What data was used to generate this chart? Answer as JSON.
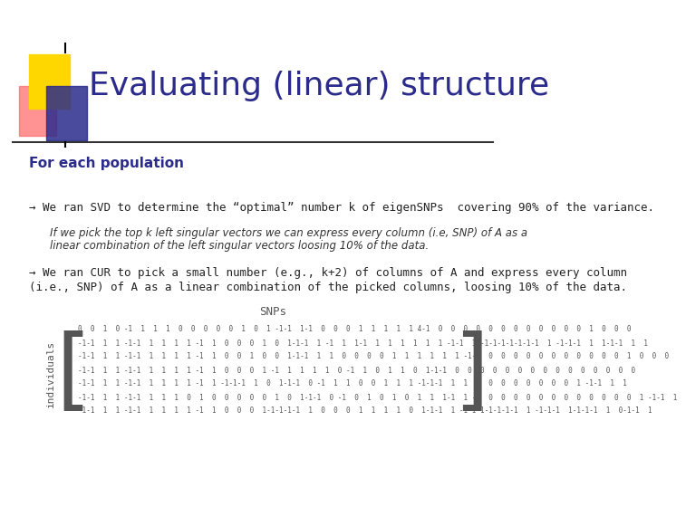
{
  "title": "Evaluating (linear) structure",
  "title_color": "#2b2b8c",
  "background_color": "#ffffff",
  "header_line_color": "#333333",
  "subtitle": "For each population",
  "subtitle_color": "#2b2b8c",
  "bullet1": "→ We ran SVD to determine the “optimal” number k of eigenSNPs  covering 90% of the variance.",
  "bullet1_color": "#222222",
  "indent1_line1": "If we pick the top k left singular vectors we can express every column (i.e, SNP) of A as a",
  "indent1_line2": "linear combination of the left singular vectors loosing 10% of the data.",
  "indent1_color": "#333333",
  "bullet2_line1": "→ We ran CUR to pick a small number (e.g., k+2) of columns of A and express every column",
  "bullet2_line2": "(i.e., SNP) of A as a linear combination of the picked columns, loosing 10% of the data.",
  "bullet2_color": "#222222",
  "matrix_label_x": "SNPs",
  "matrix_label_y": "individuals",
  "matrix_rows": [
    "0  0  1  0 -1  1  1  1  0  0  0  0  0  1  0  1 -1-1  1-1  0  0  0  1  1  1  1  1 4-1  0  0  0  0  0  0  0  0  0  0  0  0  1  0  0  0",
    "-1-1  1  1 -1-1  1  1  1  1 -1  1  0  0  0  1  0  1-1-1  1 -1  1  1-1  1  1  1  1  1  1 -1-1  1 -1-1-1-1-1-1-1  1 -1-1-1  1  1-1-1  1  1",
    "-1-1  1  1 -1-1  1  1  1  1 -1  1  0  0  1  0  0  1-1-1  1  1  0  0  0  0  1  1  1  1  1  1 -1-1  0  0  0  0  0  0  0  0  0  0  0  1  0  0  0",
    "-1-1  1  1 -1-1  1  1  1  1 -1  1  0  0  0  1 -1  1  1  1  1  0 -1  1  0  1  1  0  1-1-1  0  0  0  0  0  0  0  0  0  0  0  0  0  0  0",
    "-1-1  1  1 -1-1  1  1  1  1 -1  1 -1-1-1  1  0  1-1-1  0 -1  1  1  0  0  1  1  1 -1-1-1  1  1  0  0  0  0  0  0  0  0  1 -1-1  1  1",
    "-1-1  1  1 -1-1  1  1  1  0  1  0  0  0  0  0  1  0  1-1-1  0 -1  0  1  0  1  0  1  1  1-1  1 -1  0  0  0  0  0  0  0  0  0  0  0  0  1 -1-1  1",
    "-1-1  1  1 -1-1  1  1  1  1 -1  1  0  0  0  1-1-1-1-1  1  0  0  0  1  1  1  1  0  1-1-1  1 -1-1-1-1-1-1-1  1 -1-1-1  1-1-1-1  1  0-1-1  1"
  ],
  "matrix_color": "#555555",
  "snps_label_color": "#555555",
  "individuals_label_color": "#555555",
  "logo_yellow": "#FFD700",
  "logo_blue": "#2b2b8c",
  "logo_red": "#FF6666"
}
